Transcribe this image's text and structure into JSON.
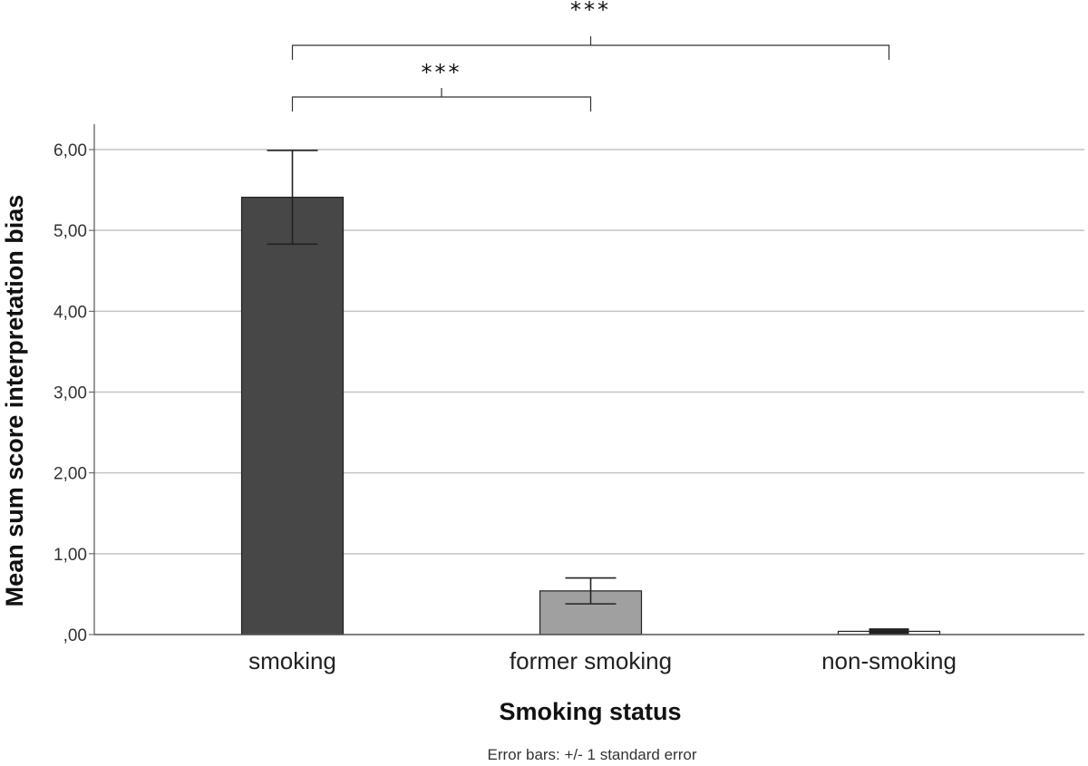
{
  "chart_data": {
    "type": "bar",
    "categories": [
      "smoking",
      "former smoking",
      "non-smoking"
    ],
    "values": [
      5.41,
      0.54,
      0.04
    ],
    "error": [
      0.58,
      0.16,
      0.02
    ],
    "bar_colors": [
      "#474747",
      "#a0a0a0",
      "#ffffff"
    ],
    "xlabel": "Smoking status",
    "ylabel": "Mean sum score interpretation bias",
    "ylim": [
      0,
      6.3
    ],
    "yticks": [
      0,
      1,
      2,
      3,
      4,
      5,
      6
    ],
    "ytick_labels": [
      ",00",
      "1,00",
      "2,00",
      "3,00",
      "4,00",
      "5,00",
      "6,00"
    ],
    "grid": "horizontal",
    "note": "Error bars: +/- 1 standard error",
    "significance": [
      {
        "from": 0,
        "to": 1,
        "label": "***"
      },
      {
        "from": 0,
        "to": 2,
        "label": "***"
      }
    ]
  }
}
